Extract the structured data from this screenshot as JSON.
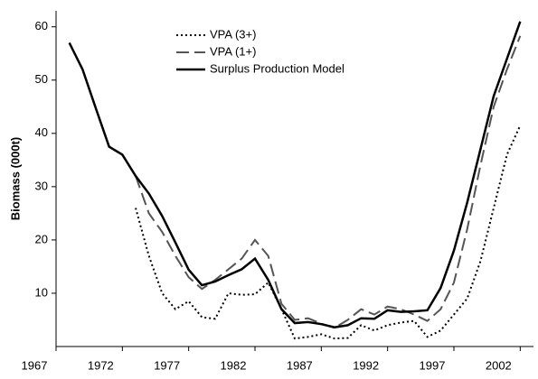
{
  "chart_data": {
    "type": "line",
    "y_label": "Biomass (000t)",
    "x": [
      1968,
      1969,
      1970,
      1971,
      1972,
      1973,
      1974,
      1975,
      1976,
      1977,
      1978,
      1979,
      1980,
      1981,
      1982,
      1983,
      1984,
      1985,
      1986,
      1987,
      1988,
      1989,
      1990,
      1991,
      1992,
      1993,
      1994,
      1995,
      1996,
      1997,
      1998,
      1999,
      2000,
      2001,
      2002
    ],
    "series": [
      {
        "name": "VPA (3+)",
        "color": "#000000",
        "style": "dotted",
        "values": [
          null,
          null,
          null,
          null,
          null,
          26,
          17,
          10,
          7,
          8.5,
          5.5,
          5.2,
          10,
          9.7,
          9.8,
          12,
          7,
          1.5,
          1.8,
          2.3,
          1.5,
          1.6,
          4,
          3,
          4,
          4.5,
          4.8,
          1.8,
          3,
          6,
          9,
          16,
          26,
          36,
          41.5
        ]
      },
      {
        "name": "VPA (1+)",
        "color": "#555555",
        "style": "dashed",
        "values": [
          null,
          null,
          null,
          null,
          null,
          32,
          25,
          21.5,
          17,
          13,
          10.8,
          12.5,
          14.5,
          16.5,
          20,
          17,
          8,
          5,
          5.3,
          4.3,
          3.5,
          5,
          7,
          6,
          7.5,
          7,
          6,
          4.8,
          7,
          12,
          22,
          34,
          45,
          52,
          58.3
        ]
      },
      {
        "name": "Surplus Production Model",
        "color": "#000000",
        "style": "solid",
        "values": [
          57,
          52,
          44.7,
          37.5,
          36,
          32,
          28.7,
          24.5,
          19.5,
          14.4,
          11.5,
          12.2,
          13.4,
          14.5,
          16.5,
          12.5,
          7,
          4.4,
          4.6,
          4.2,
          3.6,
          4.0,
          5.3,
          5.2,
          6.8,
          6.5,
          6.6,
          6.8,
          11,
          18,
          27,
          37,
          47,
          54,
          61
        ]
      }
    ],
    "xlim": [
      1967,
      2003
    ],
    "xticks": [
      1967,
      1972,
      1977,
      1982,
      1987,
      1992,
      1997,
      2002
    ],
    "ylim": [
      0,
      63
    ],
    "yticks": [
      10,
      20,
      30,
      40,
      50,
      60
    ],
    "legend": "upper-left",
    "grid": false
  }
}
